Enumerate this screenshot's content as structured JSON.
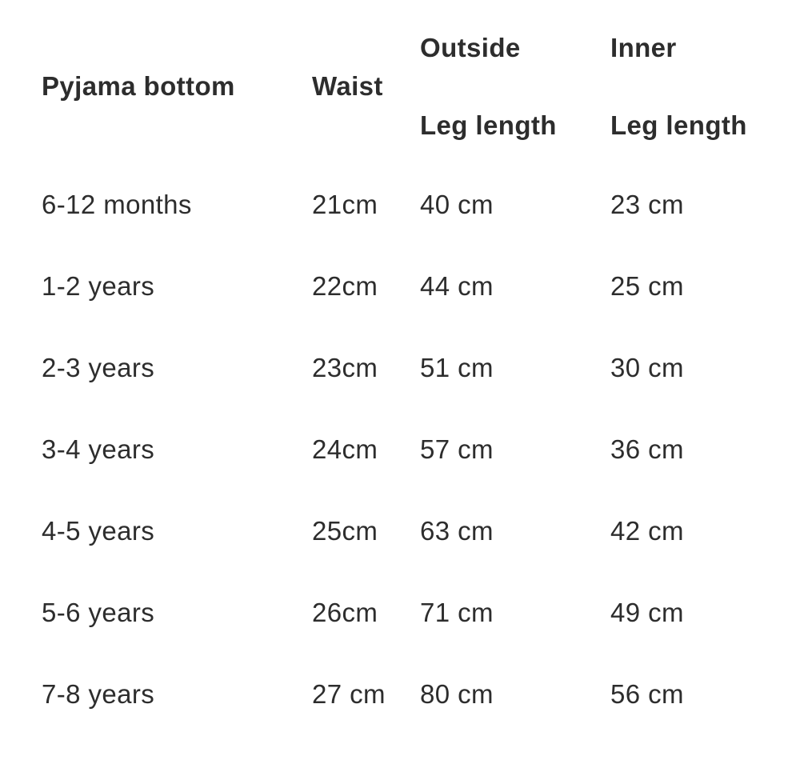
{
  "size_chart": {
    "headers": [
      {
        "line1": "Pyjama bottom",
        "line2": ""
      },
      {
        "line1": "Waist",
        "line2": ""
      },
      {
        "line1": "Outside",
        "line2": "Leg length"
      },
      {
        "line1": "Inner",
        "line2": "Leg length"
      }
    ],
    "rows": [
      {
        "size": "6-12 months",
        "waist": "21cm",
        "outside_leg": "40 cm",
        "inner_leg": "23 cm"
      },
      {
        "size": "1-2 years",
        "waist": "22cm",
        "outside_leg": "44 cm",
        "inner_leg": "25 cm"
      },
      {
        "size": "2-3 years",
        "waist": "23cm",
        "outside_leg": "51 cm",
        "inner_leg": "30 cm"
      },
      {
        "size": "3-4 years",
        "waist": "24cm",
        "outside_leg": "57 cm",
        "inner_leg": "36 cm"
      },
      {
        "size": "4-5 years",
        "waist": "25cm",
        "outside_leg": "63 cm",
        "inner_leg": "42 cm"
      },
      {
        "size": "5-6 years",
        "waist": "26cm",
        "outside_leg": "71 cm",
        "inner_leg": "49 cm"
      },
      {
        "size": "7-8 years",
        "waist": "27 cm",
        "outside_leg": "80 cm",
        "inner_leg": "56 cm"
      }
    ],
    "colors": {
      "text": "#2d2d2d",
      "background": "#ffffff"
    }
  }
}
